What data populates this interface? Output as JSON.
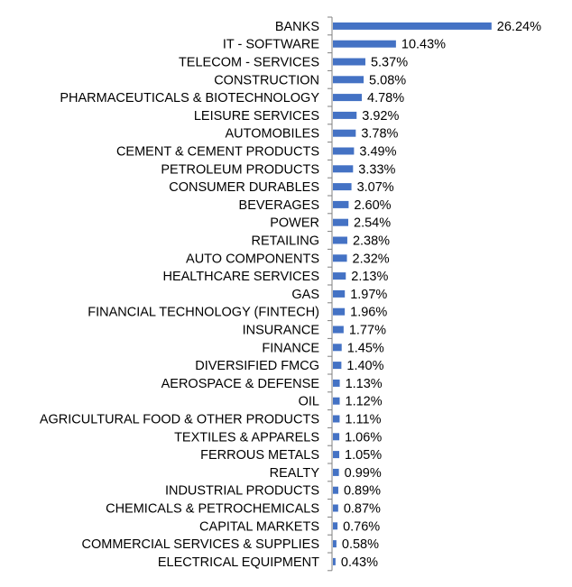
{
  "chart_data": {
    "type": "bar",
    "orientation": "horizontal",
    "title": "",
    "xlabel": "",
    "ylabel": "",
    "grid": false,
    "legend": "none",
    "bar_color": "#4472C4",
    "value_format": "percent_2dp",
    "categories": [
      "BANKS",
      "IT - SOFTWARE",
      "TELECOM - SERVICES",
      "CONSTRUCTION",
      "PHARMACEUTICALS & BIOTECHNOLOGY",
      "LEISURE SERVICES",
      "AUTOMOBILES",
      "CEMENT & CEMENT PRODUCTS",
      "PETROLEUM PRODUCTS",
      "CONSUMER DURABLES",
      "BEVERAGES",
      "POWER",
      "RETAILING",
      "AUTO COMPONENTS",
      "HEALTHCARE SERVICES",
      "GAS",
      "FINANCIAL TECHNOLOGY (FINTECH)",
      "INSURANCE",
      "FINANCE",
      "DIVERSIFIED FMCG",
      "AEROSPACE & DEFENSE",
      "OIL",
      "AGRICULTURAL FOOD & OTHER PRODUCTS",
      "TEXTILES & APPARELS",
      "FERROUS METALS",
      "REALTY",
      "INDUSTRIAL PRODUCTS",
      "CHEMICALS & PETROCHEMICALS",
      "CAPITAL MARKETS",
      "COMMERCIAL SERVICES & SUPPLIES",
      "ELECTRICAL EQUIPMENT"
    ],
    "values": [
      26.24,
      10.43,
      5.37,
      5.08,
      4.78,
      3.92,
      3.78,
      3.49,
      3.33,
      3.07,
      2.6,
      2.54,
      2.38,
      2.32,
      2.13,
      1.97,
      1.96,
      1.77,
      1.45,
      1.4,
      1.13,
      1.12,
      1.11,
      1.06,
      1.05,
      0.99,
      0.89,
      0.87,
      0.76,
      0.58,
      0.43
    ],
    "value_labels": [
      "26.24%",
      "10.43%",
      "5.37%",
      "5.08%",
      "4.78%",
      "3.92%",
      "3.78%",
      "3.49%",
      "3.33%",
      "3.07%",
      "2.60%",
      "2.54%",
      "2.38%",
      "2.32%",
      "2.13%",
      "1.97%",
      "1.96%",
      "1.77%",
      "1.45%",
      "1.40%",
      "1.13%",
      "1.12%",
      "1.11%",
      "1.06%",
      "1.05%",
      "0.99%",
      "0.89%",
      "0.87%",
      "0.76%",
      "0.58%",
      "0.43%"
    ]
  }
}
